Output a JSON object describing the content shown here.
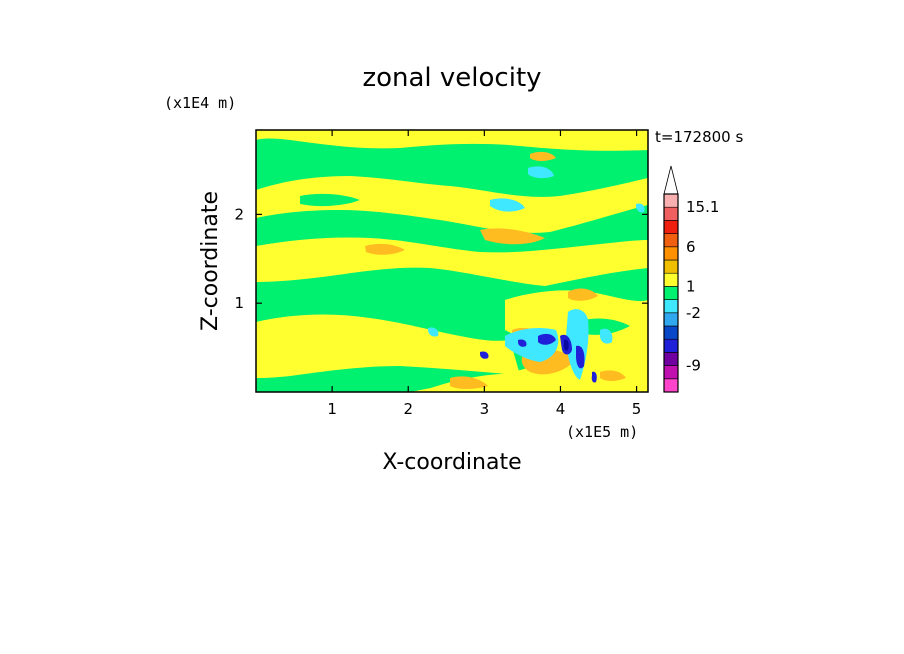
{
  "chart_data": {
    "type": "heatmap",
    "title": "zonal velocity",
    "xlabel": "X-coordinate",
    "ylabel": "Z-coordinate",
    "x_multiplier": "(x1E5 m)",
    "y_multiplier": "(x1E4 m)",
    "time_label": "t=172800 s",
    "xlim": [
      0,
      5.15
    ],
    "ylim": [
      0,
      2.95
    ],
    "x_ticks": [
      1,
      2,
      3,
      4,
      5
    ],
    "y_ticks": [
      1,
      2
    ],
    "x_tick_labels": [
      "1",
      "2",
      "3",
      "4",
      "5"
    ],
    "y_tick_labels": [
      "1",
      "2"
    ],
    "grid": false,
    "colorbar": {
      "extend": "max",
      "levels": [
        {
          "color": "#ff44cc"
        },
        {
          "color": "#c010b0"
        },
        {
          "color": "#7000a0"
        },
        {
          "color": "#2020d8"
        },
        {
          "color": "#0848c8"
        },
        {
          "color": "#30a8f0"
        },
        {
          "color": "#40e8ff"
        },
        {
          "color": "#00f070"
        },
        {
          "color": "#ffff30"
        },
        {
          "color": "#f0c000"
        },
        {
          "color": "#ff9000"
        },
        {
          "color": "#f06010"
        },
        {
          "color": "#f02010"
        },
        {
          "color": "#f06060"
        },
        {
          "color": "#f8b0b0"
        },
        {
          "color": "#ffffff"
        }
      ],
      "labels": [
        {
          "text": "-9",
          "value": -9
        },
        {
          "text": "-2",
          "value": -2
        },
        {
          "text": "1",
          "value": 1
        },
        {
          "text": "6",
          "value": 6
        },
        {
          "text": "15.1",
          "value": 15.1
        }
      ]
    },
    "field_colors": {
      "green": "#00f070",
      "yellow": "#ffff30",
      "orange": "#ffbc20",
      "cyan": "#40e8ff",
      "blue": "#2020d8",
      "navy": "#0808a0"
    }
  }
}
